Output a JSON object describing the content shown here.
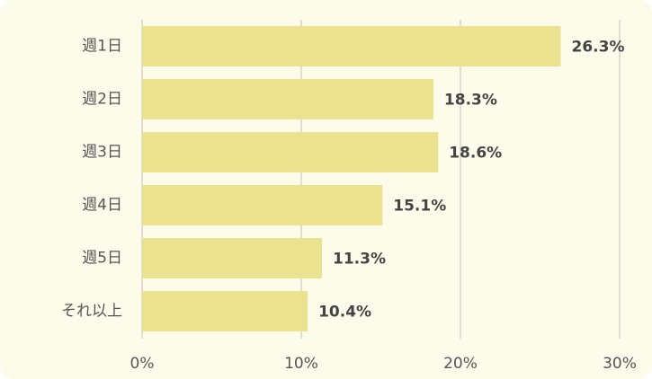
{
  "chart_data": {
    "type": "bar",
    "orientation": "horizontal",
    "categories": [
      "週1日",
      "週2日",
      "週3日",
      "週4日",
      "週5日",
      "それ以上"
    ],
    "values": [
      26.3,
      18.3,
      18.6,
      15.1,
      11.3,
      10.4
    ],
    "value_labels": [
      "26.3%",
      "18.3%",
      "18.6%",
      "15.1%",
      "11.3%",
      "10.4%"
    ],
    "color": "#ebe28f",
    "xlim": [
      0,
      30
    ],
    "xticks": [
      {
        "value": 0,
        "label": "0%"
      },
      {
        "value": 10,
        "label": "10%"
      },
      {
        "value": 20,
        "label": "20%"
      },
      {
        "value": 30,
        "label": "30%"
      }
    ],
    "grid": true
  }
}
